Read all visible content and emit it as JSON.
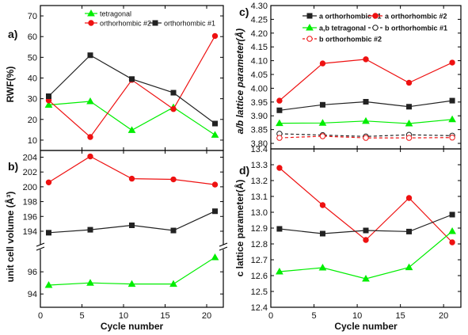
{
  "chart_data": [
    {
      "panel": "a)",
      "type": "line",
      "ylabel": "RWF(%)",
      "xlabel": "",
      "xlim": [
        0,
        22
      ],
      "ylim": [
        5,
        75
      ],
      "yticks": [
        "10",
        "20",
        "30",
        "40",
        "50",
        "60",
        "70"
      ],
      "xticks": [],
      "x": [
        1,
        6,
        11,
        16,
        21
      ],
      "series": [
        {
          "name": "tetragonal",
          "color": "#00ee00",
          "marker": "triangle",
          "dashed": false,
          "values": [
            27,
            28.7,
            14.8,
            25.8,
            12.5
          ]
        },
        {
          "name": "orthorhombic #2",
          "color": "#ee1111",
          "marker": "circle",
          "dashed": false,
          "values": [
            29.2,
            11.5,
            39.1,
            25.0,
            60.3
          ]
        },
        {
          "name": "orthorhombic #1",
          "color": "#222222",
          "marker": "square",
          "dashed": false,
          "values": [
            31.2,
            51.0,
            39.5,
            32.9,
            18.0
          ]
        }
      ],
      "legend": "top"
    },
    {
      "panel": "b)",
      "type": "line",
      "ylabel": "unit cell volume (Å³)",
      "xlabel": "Cycle number",
      "xlim": [
        0,
        22
      ],
      "axis_break": true,
      "upper_ylim": [
        192.5,
        204.8
      ],
      "upper_yticks": [
        "194",
        "196",
        "198",
        "200",
        "202",
        "204"
      ],
      "lower_ylim": [
        92.8,
        97.8
      ],
      "lower_yticks": [
        "94",
        "96"
      ],
      "xticks": [
        "0",
        "5",
        "10",
        "15",
        "20"
      ],
      "x": [
        1,
        6,
        11,
        16,
        21
      ],
      "series": [
        {
          "color": "#ee1111",
          "marker": "circle",
          "segment": "upper",
          "values": [
            200.6,
            204.1,
            201.1,
            201.0,
            200.3
          ]
        },
        {
          "color": "#222222",
          "marker": "square",
          "segment": "upper",
          "values": [
            193.8,
            194.2,
            194.8,
            194.1,
            196.7
          ]
        },
        {
          "color": "#00ee00",
          "marker": "triangle",
          "segment": "lower",
          "values": [
            94.8,
            95.0,
            94.9,
            94.9,
            97.3
          ]
        }
      ]
    },
    {
      "panel": "c)",
      "type": "line",
      "ylabel": "a/b lattice parameter(Å)",
      "xlabel": "",
      "xlim": [
        0,
        22
      ],
      "ylim": [
        3.78,
        4.3
      ],
      "yticks": [
        "3.80",
        "3.85",
        "3.90",
        "3.95",
        "4.00",
        "4.05",
        "4.10",
        "4.15",
        "4.20",
        "4.25",
        "4.30"
      ],
      "xticks": [],
      "x": [
        1,
        6,
        11,
        16,
        21
      ],
      "series": [
        {
          "name": "a orthorhombic #1",
          "color": "#222222",
          "marker": "square",
          "dashed": false,
          "open": false,
          "values": [
            3.92,
            3.94,
            3.951,
            3.933,
            3.955
          ]
        },
        {
          "name": "a orthorhombic #2",
          "color": "#ee1111",
          "marker": "circle",
          "dashed": false,
          "open": false,
          "values": [
            3.955,
            4.09,
            4.105,
            4.02,
            4.093
          ]
        },
        {
          "name": "a,b tetragonal",
          "color": "#00ee00",
          "marker": "triangle",
          "dashed": false,
          "open": false,
          "values": [
            3.873,
            3.874,
            3.881,
            3.872,
            3.887
          ]
        },
        {
          "name": "b orthorhombic #1",
          "color": "#222222",
          "marker": "circle",
          "dashed": true,
          "open": true,
          "values": [
            3.835,
            3.83,
            3.825,
            3.831,
            3.828
          ]
        },
        {
          "name": "b orthorhombic #2",
          "color": "#ee1111",
          "marker": "circle",
          "dashed": true,
          "open": true,
          "values": [
            3.82,
            3.826,
            3.82,
            3.82,
            3.821
          ]
        }
      ],
      "legend": "top"
    },
    {
      "panel": "d)",
      "type": "line",
      "ylabel": "c lattice parameter(Å)",
      "xlabel": "Cycle number",
      "xlim": [
        0,
        22
      ],
      "ylim": [
        12.4,
        13.4
      ],
      "yticks": [
        "12.4",
        "12.5",
        "12.6",
        "12.7",
        "12.8",
        "12.9",
        "13.0",
        "13.1",
        "13.2",
        "13.3",
        "13.4"
      ],
      "xticks": [
        "0",
        "5",
        "10",
        "15",
        "20"
      ],
      "x": [
        1,
        6,
        11,
        16,
        21
      ],
      "series": [
        {
          "color": "#ee1111",
          "marker": "circle",
          "values": [
            13.28,
            13.045,
            12.825,
            13.09,
            12.81
          ]
        },
        {
          "color": "#222222",
          "marker": "square",
          "values": [
            12.895,
            12.865,
            12.885,
            12.878,
            12.985
          ]
        },
        {
          "color": "#00ee00",
          "marker": "triangle",
          "values": [
            12.625,
            12.65,
            12.58,
            12.652,
            12.88
          ]
        }
      ]
    }
  ]
}
